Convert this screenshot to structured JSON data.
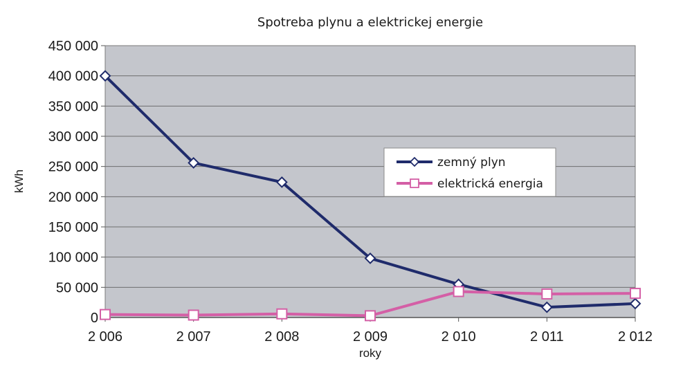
{
  "chart_data": {
    "type": "line",
    "title": "Spotreba plynu a elektrickej energie",
    "xlabel": "roky",
    "ylabel": "kWh",
    "categories": [
      "2 006",
      "2 007",
      "2 008",
      "2 009",
      "2 010",
      "2 011",
      "2 012"
    ],
    "ylim": [
      0,
      450000
    ],
    "yticks": [
      0,
      50000,
      100000,
      150000,
      200000,
      250000,
      300000,
      350000,
      400000,
      450000
    ],
    "ytick_labels": [
      "0",
      "50 000",
      "100 000",
      "150 000",
      "200 000",
      "250 000",
      "300 000",
      "350 000",
      "400 000",
      "450 000"
    ],
    "grid": true,
    "legend_position": "center-right",
    "series": [
      {
        "name": "zemný plyn",
        "color": "#1f2b6b",
        "marker": "diamond",
        "values": [
          400000,
          256000,
          224000,
          98000,
          55000,
          17000,
          23000
        ]
      },
      {
        "name": "elektrická energia",
        "color": "#d45fa6",
        "marker": "square",
        "values": [
          5000,
          4000,
          6000,
          3000,
          43000,
          39000,
          40000
        ]
      }
    ]
  }
}
